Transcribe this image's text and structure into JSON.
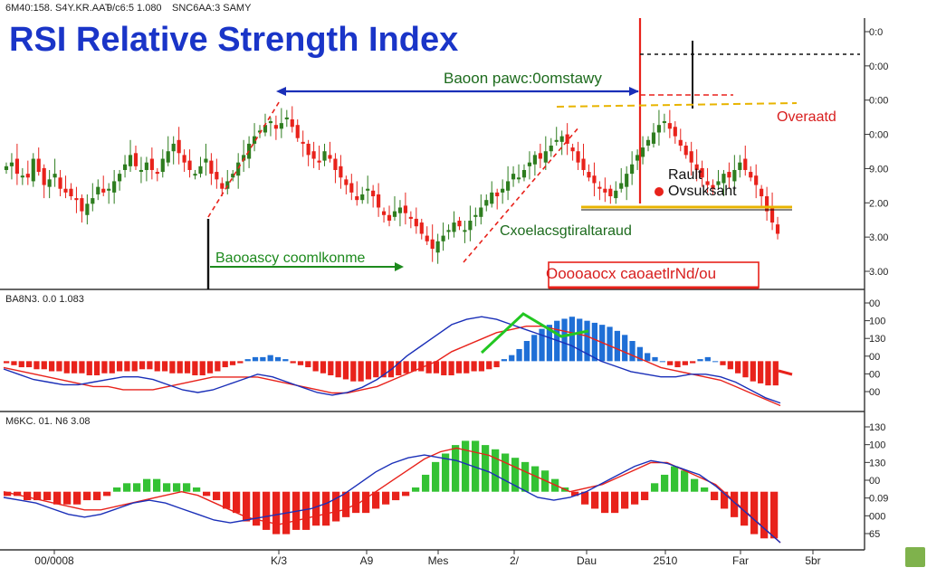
{
  "header": {
    "ticker_line": "6M40:158. S4Y.KR.AAT",
    "stats_line": "9/c6:5 1.080",
    "stats_line2": "SNC6AA:3 SAMY",
    "title": "RSI Relative Strength Index"
  },
  "annotations": {
    "top_arrow_label": "Baoon pawc:0omstawy",
    "bottom_arrow_label": "Baooascy coomlkonme",
    "right_label_1": "Rault",
    "right_label_2": "Ovsuksaht",
    "overbought_label": "Overaatd",
    "center_label": "Cxoelacsgtiraltaraud",
    "red_box_label": "Ooooaocx caoaetlrNd/ou"
  },
  "panel_labels": {
    "panel2": "BA8N3. 0.0 1.083",
    "panel3": "M6KC. 01. N6 3.08"
  },
  "colors": {
    "up_candle": "#2e7d1f",
    "down_candle": "#e8221b",
    "blue_arrow": "#1a2fb8",
    "green_text": "#1d8a1d",
    "red_text": "#d81e1e",
    "title_blue": "#1a35c8",
    "histogram_red": "#e8221b",
    "histogram_blue": "#1f6fd6",
    "histogram_green": "#34c234",
    "yellow_line": "#e8b400"
  },
  "chart_data": [
    {
      "type": "candlestick",
      "title": "RSI Relative Strength Index",
      "y_axis_labels": [
        "0:0",
        "0:00",
        "0:00",
        "0:00",
        "9.00",
        "2.00",
        "3.00",
        "3.00"
      ],
      "close": [
        174,
        176,
        170,
        169,
        168,
        178,
        171,
        164,
        167,
        170,
        162,
        160,
        158,
        156,
        150,
        154,
        157,
        163,
        160,
        162,
        166,
        170,
        175,
        180,
        174,
        172,
        176,
        172,
        170,
        178,
        182,
        186,
        181,
        176,
        172,
        170,
        174,
        178,
        170,
        167,
        162,
        166,
        170,
        176,
        180,
        186,
        190,
        193,
        196,
        198,
        194,
        197,
        200,
        195,
        189,
        186,
        180,
        178,
        176,
        182,
        178,
        172,
        168,
        164,
        160,
        156,
        159,
        162,
        158,
        152,
        148,
        145,
        150,
        152,
        149,
        146,
        142,
        138,
        134,
        130,
        134,
        137,
        140,
        144,
        142,
        140,
        145,
        148,
        152,
        156,
        160,
        158,
        162,
        166,
        170,
        168,
        172,
        176,
        180,
        178,
        182,
        185,
        188,
        190,
        186,
        182,
        176,
        172,
        168,
        165,
        162,
        160,
        158,
        161,
        165,
        170,
        175,
        180,
        184,
        188,
        192,
        196,
        198,
        194,
        190,
        185,
        180,
        176,
        172,
        168,
        164,
        162,
        166,
        170,
        168,
        172,
        176,
        172,
        168,
        164,
        158,
        150,
        144,
        138
      ]
    },
    {
      "type": "histogram",
      "title": "BA8N3. 0.0 1.083",
      "y_axis_labels": [
        "00",
        "100",
        "130",
        "00",
        "00",
        "00"
      ],
      "histogram": [
        -1,
        -2,
        -3,
        -3,
        -4,
        -4,
        -5,
        -5,
        -6,
        -6,
        -6,
        -7,
        -7,
        -6,
        -6,
        -5,
        -5,
        -5,
        -4,
        -4,
        -5,
        -5,
        -6,
        -6,
        -6,
        -7,
        -7,
        -6,
        -5,
        -3,
        -2,
        -1,
        1,
        2,
        2,
        3,
        2,
        1,
        -1,
        -2,
        -3,
        -5,
        -6,
        -7,
        -8,
        -9,
        -10,
        -10,
        -9,
        -8,
        -8,
        -8,
        -7,
        -6,
        -5,
        -5,
        -6,
        -6,
        -7,
        -7,
        -6,
        -6,
        -5,
        -5,
        -4,
        -3,
        1,
        3,
        6,
        10,
        13,
        16,
        18,
        20,
        21,
        22,
        21,
        20,
        19,
        18,
        17,
        15,
        13,
        10,
        7,
        4,
        2,
        0,
        -2,
        -3,
        -2,
        -1,
        1,
        2,
        0,
        -2,
        -4,
        -6,
        -8,
        -10,
        -11,
        -12,
        -12
      ],
      "line_signal": [
        -2,
        -3,
        -4,
        -5,
        -6,
        -7,
        -8,
        -8,
        -9,
        -9,
        -9,
        -8,
        -7,
        -6,
        -5,
        -5,
        -5,
        -5,
        -6,
        -7,
        -8,
        -9,
        -10,
        -10,
        -9,
        -8,
        -6,
        -4,
        -2,
        0,
        3,
        5,
        7,
        9,
        10,
        11,
        11,
        10,
        9,
        8,
        6,
        4,
        2,
        0,
        -2,
        -3,
        -4,
        -5,
        -6,
        -8,
        -10,
        -12,
        -14
      ],
      "line_macd": [
        -3,
        -5,
        -7,
        -8,
        -9,
        -9,
        -8,
        -7,
        -6,
        -6,
        -7,
        -9,
        -11,
        -12,
        -11,
        -9,
        -7,
        -5,
        -6,
        -8,
        -10,
        -12,
        -13,
        -12,
        -10,
        -7,
        -3,
        2,
        6,
        10,
        14,
        16,
        17,
        16,
        14,
        12,
        10,
        8,
        6,
        3,
        0,
        -2,
        -4,
        -5,
        -6,
        -6,
        -5,
        -5,
        -6,
        -8,
        -11,
        -14,
        -16
      ]
    },
    {
      "type": "histogram",
      "title": "M6KC. 01. N6 3.08",
      "y_axis_labels": [
        "130",
        "100",
        "130",
        "00",
        "0.09",
        "000",
        "65"
      ],
      "x_labels": [
        "00/0008",
        "K/3",
        "A9",
        "Mes",
        "2/",
        "Dau",
        "2510",
        "Far",
        "5br"
      ],
      "histogram": [
        -1,
        -1,
        -2,
        -2,
        -2,
        -3,
        -3,
        -3,
        -2,
        -2,
        -1,
        1,
        2,
        2,
        3,
        3,
        2,
        2,
        2,
        1,
        -1,
        -2,
        -4,
        -5,
        -7,
        -8,
        -9,
        -10,
        -10,
        -9,
        -9,
        -8,
        -8,
        -7,
        -6,
        -5,
        -5,
        -4,
        -3,
        -2,
        -1,
        1,
        4,
        7,
        9,
        11,
        12,
        12,
        11,
        10,
        9,
        8,
        7,
        6,
        5,
        3,
        1,
        -1,
        -3,
        -4,
        -5,
        -5,
        -4,
        -3,
        -2,
        2,
        4,
        6,
        5,
        3,
        1,
        -2,
        -4,
        -6,
        -8,
        -10,
        -11,
        -11
      ],
      "line_signal": [
        0,
        -1,
        -2,
        -3,
        -4,
        -5,
        -5,
        -4,
        -3,
        -2,
        -1,
        0,
        -1,
        -3,
        -5,
        -7,
        -8,
        -9,
        -8,
        -7,
        -6,
        -5,
        -3,
        0,
        3,
        6,
        9,
        11,
        12,
        11,
        10,
        8,
        6,
        4,
        2,
        0,
        1,
        2,
        4,
        6,
        8,
        8,
        6,
        4,
        2,
        -2,
        -6,
        -10,
        -14
      ],
      "line_macd": [
        -2,
        -3,
        -4,
        -6,
        -8,
        -9,
        -8,
        -6,
        -4,
        -3,
        -4,
        -6,
        -8,
        -10,
        -11,
        -10,
        -9,
        -8,
        -7,
        -6,
        -4,
        -1,
        3,
        7,
        10,
        12,
        13,
        12,
        11,
        9,
        7,
        4,
        1,
        -2,
        -3,
        -2,
        0,
        3,
        6,
        9,
        11,
        10,
        8,
        6,
        2,
        -3,
        -8,
        -13,
        -18
      ]
    }
  ]
}
